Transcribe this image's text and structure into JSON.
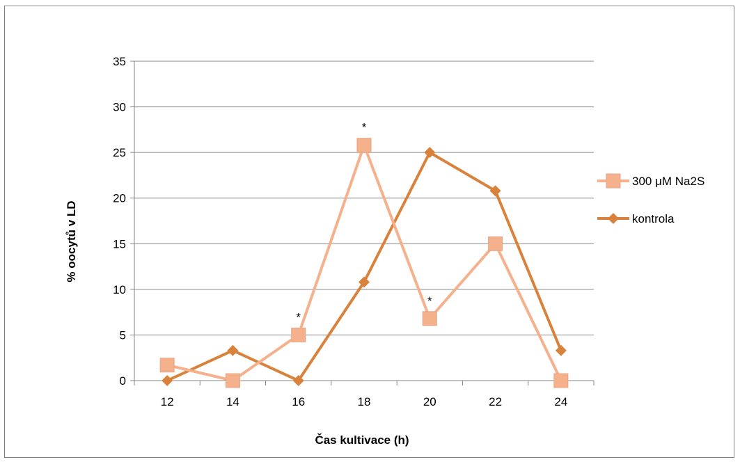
{
  "chart_data": {
    "type": "line",
    "title": "",
    "xlabel": "Čas kultivace (h)",
    "ylabel": "% oocytů v LD",
    "categories": [
      "12",
      "14",
      "16",
      "18",
      "20",
      "22",
      "24"
    ],
    "ylim": [
      0,
      35
    ],
    "yticks": [
      0,
      5,
      10,
      15,
      20,
      25,
      30,
      35
    ],
    "grid": "horizontal",
    "legend_position": "right",
    "series": [
      {
        "name": "300 μM Na2S",
        "marker": "square",
        "color": "#f5b08c",
        "values": [
          1.7,
          0,
          5,
          25.8,
          6.8,
          15,
          0
        ]
      },
      {
        "name": "kontrola",
        "marker": "diamond",
        "color": "#d9823c",
        "values": [
          0,
          3.3,
          0,
          10.8,
          25,
          20.8,
          3.3
        ]
      }
    ],
    "annotations": [
      {
        "text": "*",
        "category": "16",
        "value": 5
      },
      {
        "text": "*",
        "category": "18",
        "value": 25.8
      },
      {
        "text": "*",
        "category": "20",
        "value": 6.8
      }
    ]
  }
}
